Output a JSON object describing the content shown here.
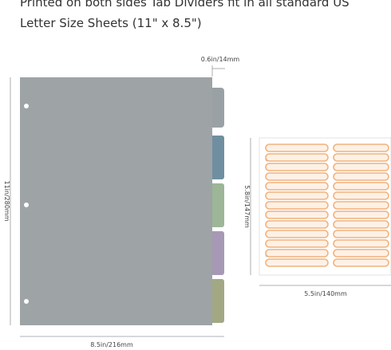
{
  "header": {
    "lines": [
      "Printed on both sides Tab Dividers fit in all standard US",
      "Letter Size Sheets (11\" x 8.5\")"
    ]
  },
  "dimensions": {
    "tab_width": "0.6in/14mm",
    "divider_height": "11in/280mm",
    "divider_width": "8.5in/216mm",
    "sheet_height": "5.8in/147mm",
    "sheet_width": "5.5in/140mm"
  }
}
